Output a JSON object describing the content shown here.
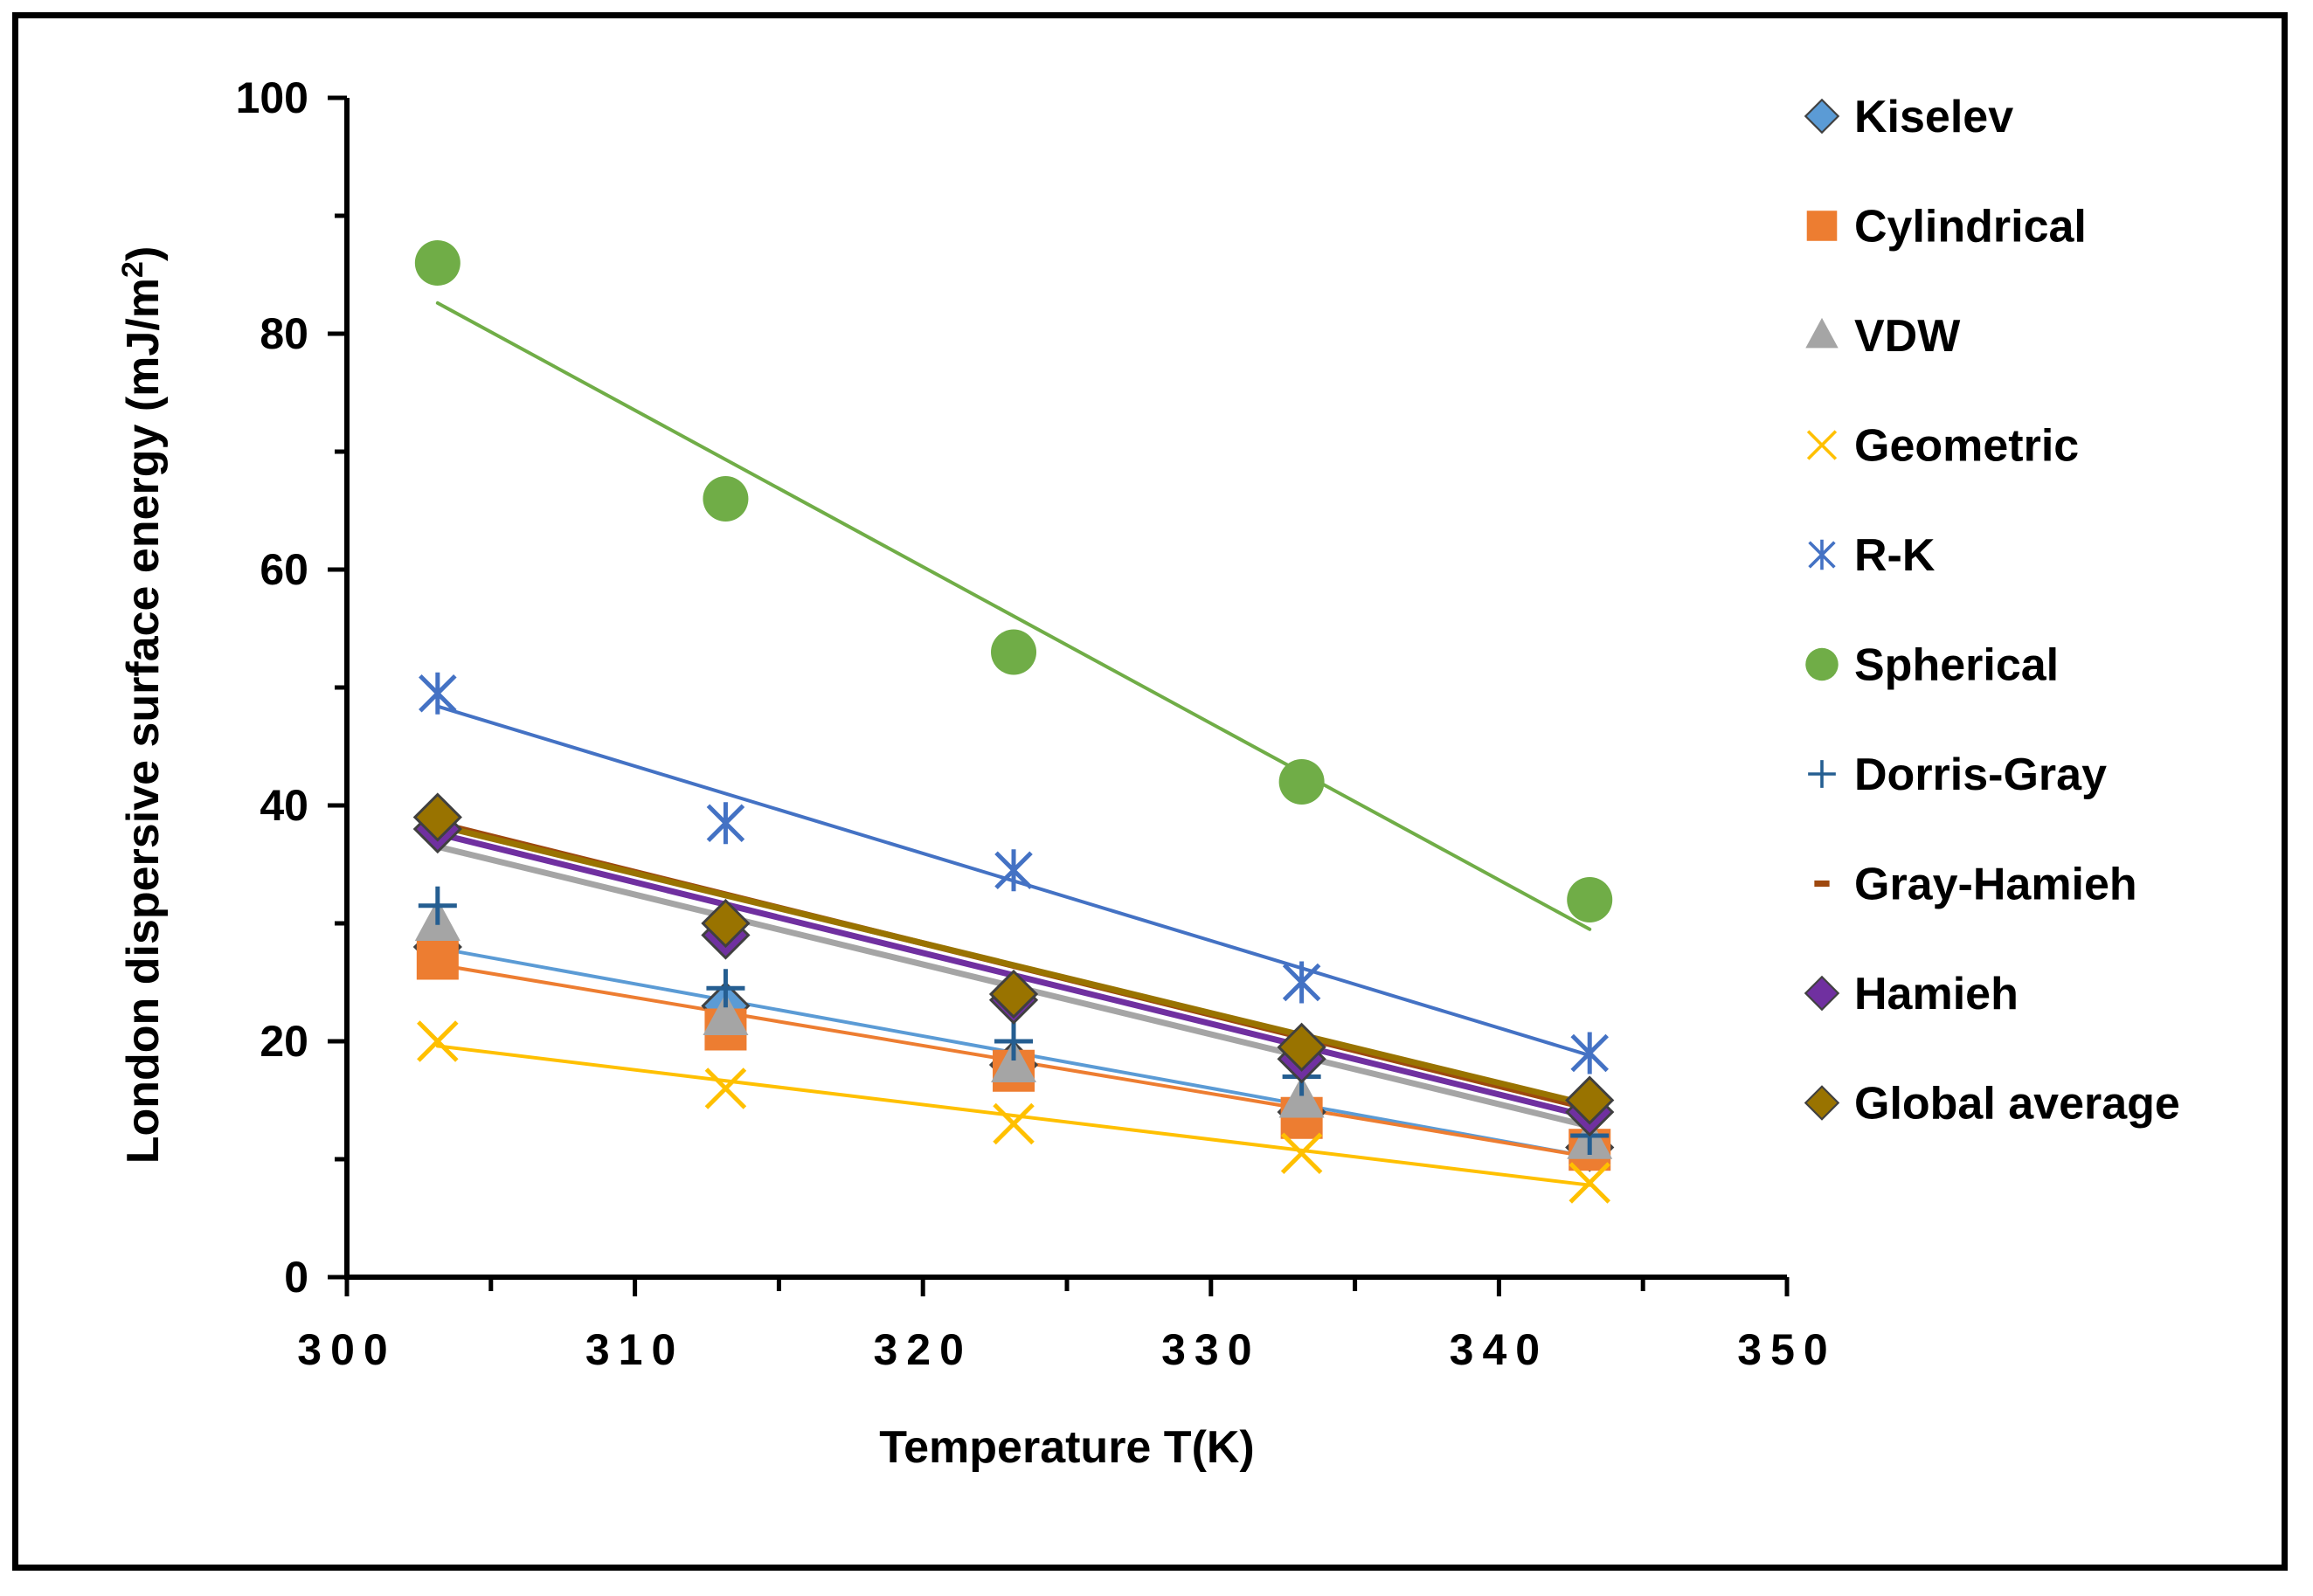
{
  "chart_data": {
    "type": "scatter",
    "title": "",
    "xlabel": "Temperature T(K)",
    "ylabel_main": "London dispersive surface energy (mJ/m",
    "ylabel_sup": "2",
    "ylabel_end": ")",
    "xlim": [
      300,
      350
    ],
    "ylim": [
      0,
      100
    ],
    "xticks": [
      300,
      310,
      320,
      330,
      340,
      350
    ],
    "yticks": [
      0,
      20,
      40,
      60,
      80,
      100
    ],
    "xtick_labels": [
      "300",
      "310",
      "320",
      "330",
      "340",
      "350"
    ],
    "ytick_labels": [
      "0",
      "20",
      "40",
      "60",
      "80",
      "100"
    ],
    "x": [
      303.15,
      313.15,
      323.15,
      333.15,
      343.15
    ],
    "legend_position": "right",
    "series": [
      {
        "name": "Kiselev",
        "marker": "diamond",
        "color": "#5B9BD5",
        "values": [
          28,
          23,
          18,
          14,
          11
        ],
        "trend": [
          27.9,
          10.2
        ]
      },
      {
        "name": "Cylindrical",
        "marker": "square",
        "color": "#ED7D31",
        "values": [
          27,
          21,
          17.5,
          13.5,
          10.8
        ],
        "trend": [
          26.5,
          10.2
        ]
      },
      {
        "name": "VDW",
        "marker": "triangle",
        "color": "#A5A5A5",
        "values": [
          30,
          22,
          18,
          15,
          11.5
        ],
        "trend": [
          36.5,
          12.8
        ]
      },
      {
        "name": "Geometric",
        "marker": "x",
        "color": "#FFC000",
        "values": [
          20,
          16,
          13,
          10.5,
          8
        ],
        "trend": [
          19.6,
          7.8
        ]
      },
      {
        "name": "R-K",
        "marker": "asterisk",
        "color": "#4472C4",
        "values": [
          49.5,
          38.5,
          34.5,
          25,
          19
        ],
        "trend": [
          48.4,
          18.8
        ]
      },
      {
        "name": "Spherical",
        "marker": "circle",
        "color": "#70AD47",
        "values": [
          86,
          66,
          53,
          42,
          32
        ],
        "trend": [
          82.6,
          29.5
        ]
      },
      {
        "name": "Dorris-Gray",
        "marker": "plus",
        "color": "#255E91",
        "values": [
          31.5,
          24.5,
          20,
          17,
          12
        ],
        "trend": null
      },
      {
        "name": "Gray-Hamieh",
        "marker": "dash",
        "color": "#9E480E",
        "values": [
          39,
          30,
          24,
          19,
          14
        ],
        "trend": [
          38.5,
          14.3
        ]
      },
      {
        "name": "Hamieh",
        "marker": "diamond",
        "color": "#7030A0",
        "values": [
          38,
          29,
          23.5,
          18.5,
          14
        ],
        "trend": [
          37.6,
          13.6
        ]
      },
      {
        "name": "Global average",
        "marker": "diamond",
        "color": "#997300",
        "values": [
          39,
          30,
          24,
          19.5,
          15
        ],
        "trend": [
          38.3,
          14.6
        ]
      }
    ]
  }
}
